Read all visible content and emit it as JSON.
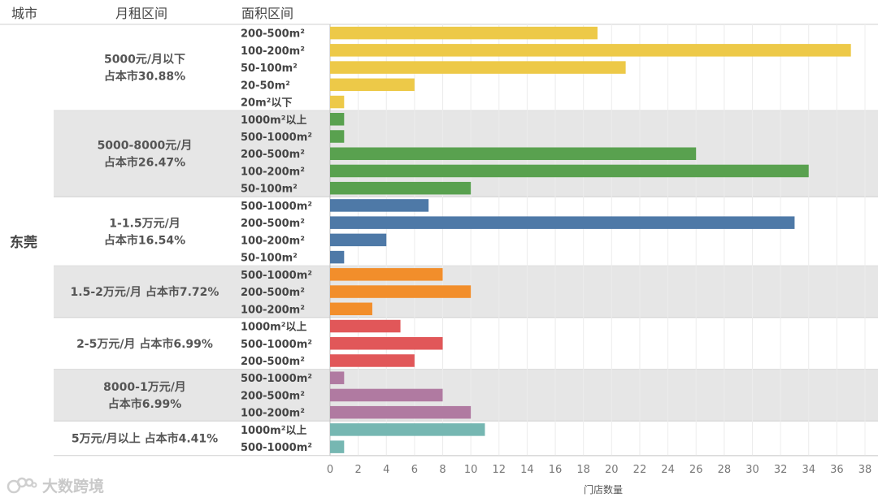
{
  "headers": {
    "city": "城市",
    "rent": "月租区间",
    "area": "面积区间"
  },
  "city": "东莞",
  "watermark": "大数跨境",
  "chart_data": {
    "type": "bar",
    "orientation": "horizontal",
    "xlabel": "门店数量",
    "xlim": [
      0,
      38
    ],
    "x_ticks": [
      0,
      2,
      4,
      6,
      8,
      10,
      12,
      14,
      16,
      18,
      20,
      22,
      24,
      26,
      28,
      30,
      32,
      34,
      36,
      38
    ],
    "grid": true,
    "groups": [
      {
        "label": [
          "5000元/月以下",
          "占本市30.88%"
        ],
        "color": "#edc948",
        "shaded": false,
        "rows": [
          {
            "category": "200-500m²",
            "value": 19
          },
          {
            "category": "100-200m²",
            "value": 37
          },
          {
            "category": "50-100m²",
            "value": 21
          },
          {
            "category": "20-50m²",
            "value": 6
          },
          {
            "category": "20m²以下",
            "value": 1
          }
        ]
      },
      {
        "label": [
          "5000-8000元/月",
          "占本市26.47%"
        ],
        "color": "#59a14f",
        "shaded": true,
        "rows": [
          {
            "category": "1000m²以上",
            "value": 1
          },
          {
            "category": "500-1000m²",
            "value": 1
          },
          {
            "category": "200-500m²",
            "value": 26
          },
          {
            "category": "100-200m²",
            "value": 34
          },
          {
            "category": "50-100m²",
            "value": 10
          }
        ]
      },
      {
        "label": [
          "1-1.5万元/月",
          "占本市16.54%"
        ],
        "color": "#4e79a7",
        "shaded": false,
        "rows": [
          {
            "category": "500-1000m²",
            "value": 7
          },
          {
            "category": "200-500m²",
            "value": 33
          },
          {
            "category": "100-200m²",
            "value": 4
          },
          {
            "category": "50-100m²",
            "value": 1
          }
        ]
      },
      {
        "label": [
          "1.5-2万元/月  占本市7.72%"
        ],
        "color": "#f28e2b",
        "shaded": true,
        "rows": [
          {
            "category": "500-1000m²",
            "value": 8
          },
          {
            "category": "200-500m²",
            "value": 10
          },
          {
            "category": "100-200m²",
            "value": 3
          }
        ]
      },
      {
        "label": [
          "2-5万元/月  占本市6.99%"
        ],
        "color": "#e15759",
        "shaded": false,
        "rows": [
          {
            "category": "1000m²以上",
            "value": 5
          },
          {
            "category": "500-1000m²",
            "value": 8
          },
          {
            "category": "200-500m²",
            "value": 6
          }
        ]
      },
      {
        "label": [
          "8000-1万元/月",
          "占本市6.99%"
        ],
        "color": "#b07aa1",
        "shaded": true,
        "rows": [
          {
            "category": "500-1000m²",
            "value": 1
          },
          {
            "category": "200-500m²",
            "value": 8
          },
          {
            "category": "100-200m²",
            "value": 10
          }
        ]
      },
      {
        "label": [
          "5万元/月以上  占本市4.41%"
        ],
        "color": "#76b7b2",
        "shaded": false,
        "rows": [
          {
            "category": "1000m²以上",
            "value": 11
          },
          {
            "category": "500-1000m²",
            "value": 1
          }
        ]
      }
    ]
  }
}
